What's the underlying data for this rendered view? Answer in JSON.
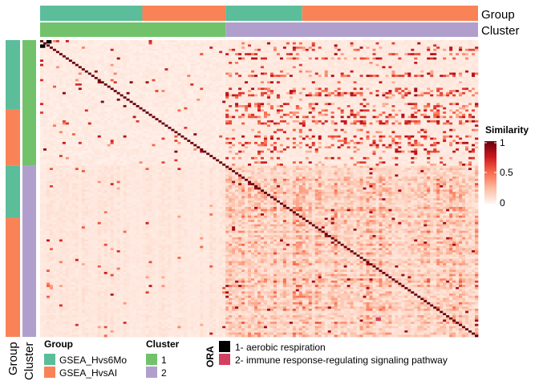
{
  "chart_data": {
    "type": "heatmap",
    "n": 137,
    "annotations": {
      "group_label": "Group",
      "cluster_label": "Cluster",
      "group_segments": [
        {
          "level": "GSEA_Hvs6Mo",
          "count": 32
        },
        {
          "level": "GSEA_HvsAI",
          "count": 26
        },
        {
          "level": "GSEA_Hvs6Mo",
          "count": 24
        },
        {
          "level": "GSEA_HvsAI",
          "count": 55
        }
      ],
      "cluster_segments": [
        {
          "level": "1",
          "count": 58
        },
        {
          "level": "2",
          "count": 79
        }
      ]
    },
    "color_scale": {
      "title": "Similarity",
      "min": 0,
      "max": 1,
      "ticks": [
        "0",
        "0.5",
        "1"
      ],
      "stops": [
        "#fff5f0",
        "#fcbba1",
        "#fb6a4a",
        "#cb181d",
        "#67000d"
      ]
    },
    "legends": {
      "group": {
        "title": "Group",
        "items": [
          {
            "label": "GSEA_Hvs6Mo",
            "color": "#5bbd9a"
          },
          {
            "label": "GSEA_HvsAI",
            "color": "#f98357"
          }
        ]
      },
      "cluster": {
        "title": "Cluster",
        "items": [
          {
            "label": "1",
            "color": "#72c26c"
          },
          {
            "label": "2",
            "color": "#b09fcd"
          }
        ]
      },
      "ora": {
        "title": "ORA",
        "items": [
          {
            "label": "1- aerobic respiration",
            "color": "#000000"
          },
          {
            "label": "2- immune response-regulating signaling pathway",
            "color": "#d1405e"
          }
        ]
      }
    },
    "ora_marks": [
      {
        "row": 0,
        "col": 2,
        "term": 1
      },
      {
        "row": 2,
        "col": 0,
        "term": 1
      },
      {
        "row": 128,
        "col": 105,
        "term": 2
      }
    ]
  }
}
